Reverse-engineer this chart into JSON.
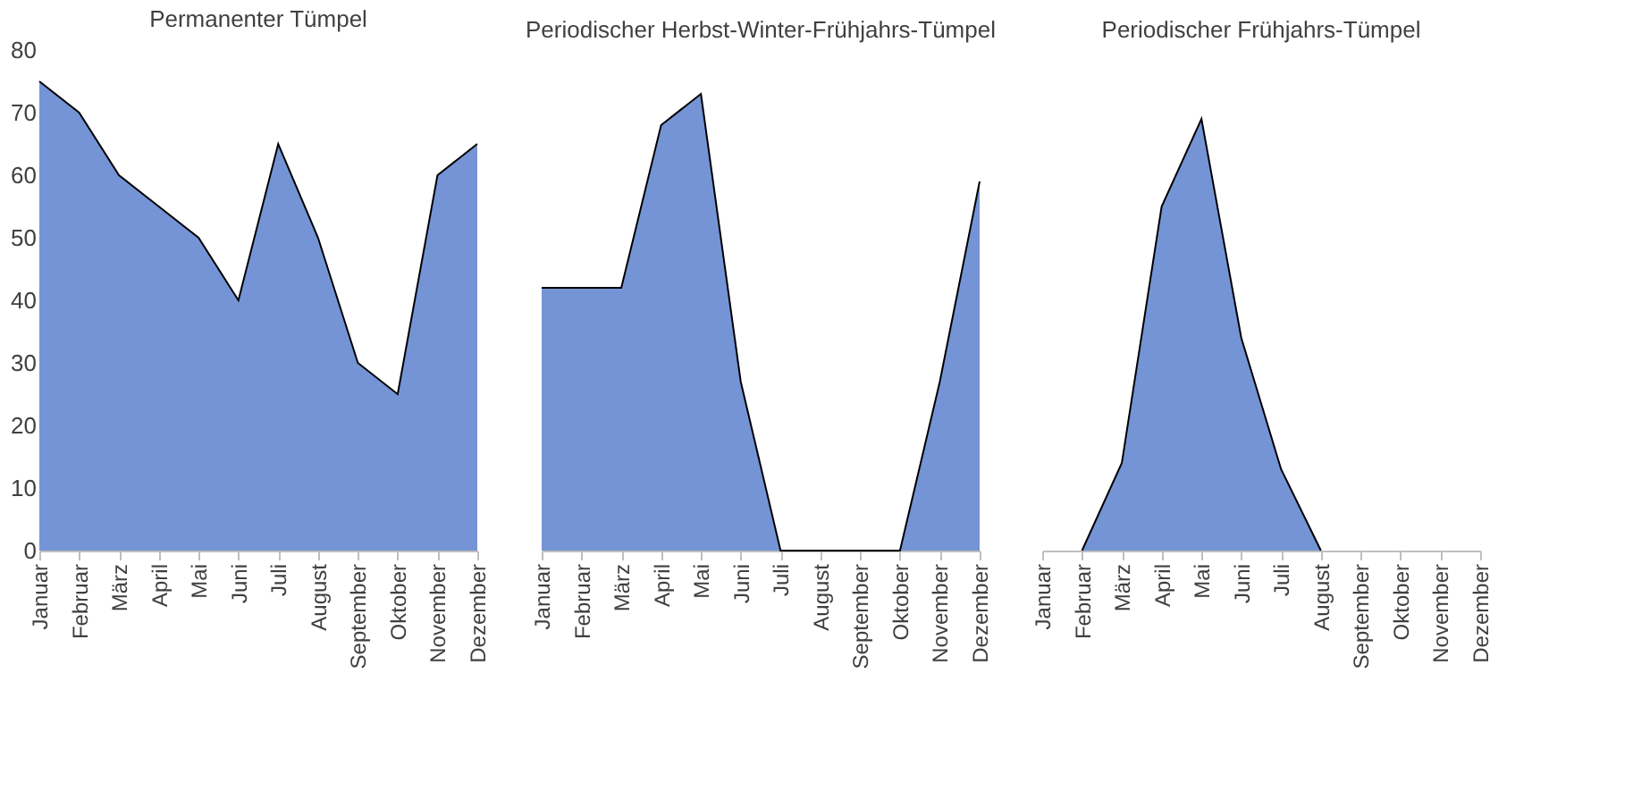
{
  "chart_data": [
    {
      "type": "area",
      "title": "Permanenter Tümpel",
      "categories": [
        "Januar",
        "Februar",
        "März",
        "April",
        "Mai",
        "Juni",
        "Juli",
        "August",
        "September",
        "Oktober",
        "November",
        "Dezember"
      ],
      "values": [
        75,
        70,
        60,
        55,
        50,
        40,
        65,
        50,
        30,
        25,
        60,
        65
      ],
      "color": "#3a66c4",
      "ylim": [
        0,
        80
      ],
      "yticks": [
        0,
        10,
        20,
        30,
        40,
        50,
        60,
        70,
        80
      ],
      "grid": false
    },
    {
      "type": "area",
      "title": "Periodischer Herbst-Winter-Frühjahrs-Tümpel",
      "categories": [
        "Januar",
        "Februar",
        "März",
        "April",
        "Mai",
        "Juni",
        "Juli",
        "August",
        "September",
        "Oktober",
        "November",
        "Dezember"
      ],
      "values": [
        42,
        42,
        42,
        68,
        73,
        27,
        0,
        0,
        0,
        0,
        27,
        59
      ],
      "color": "#3a66c4",
      "ylim": [
        0,
        80
      ],
      "tick_labels": "x",
      "grid": false
    },
    {
      "type": "area",
      "title": "Periodischer Frühjahrs-Tümpel",
      "categories": [
        "Januar",
        "Februar",
        "März",
        "April",
        "Mai",
        "Juni",
        "Juli",
        "August",
        "September",
        "Oktober",
        "November",
        "Dezember"
      ],
      "values": [
        null,
        0,
        14,
        55,
        69,
        34,
        13,
        0,
        null,
        null,
        null,
        null
      ],
      "color": "#3a66c4",
      "ylim": [
        0,
        80
      ],
      "tick_labels": "x",
      "grid": false
    }
  ]
}
